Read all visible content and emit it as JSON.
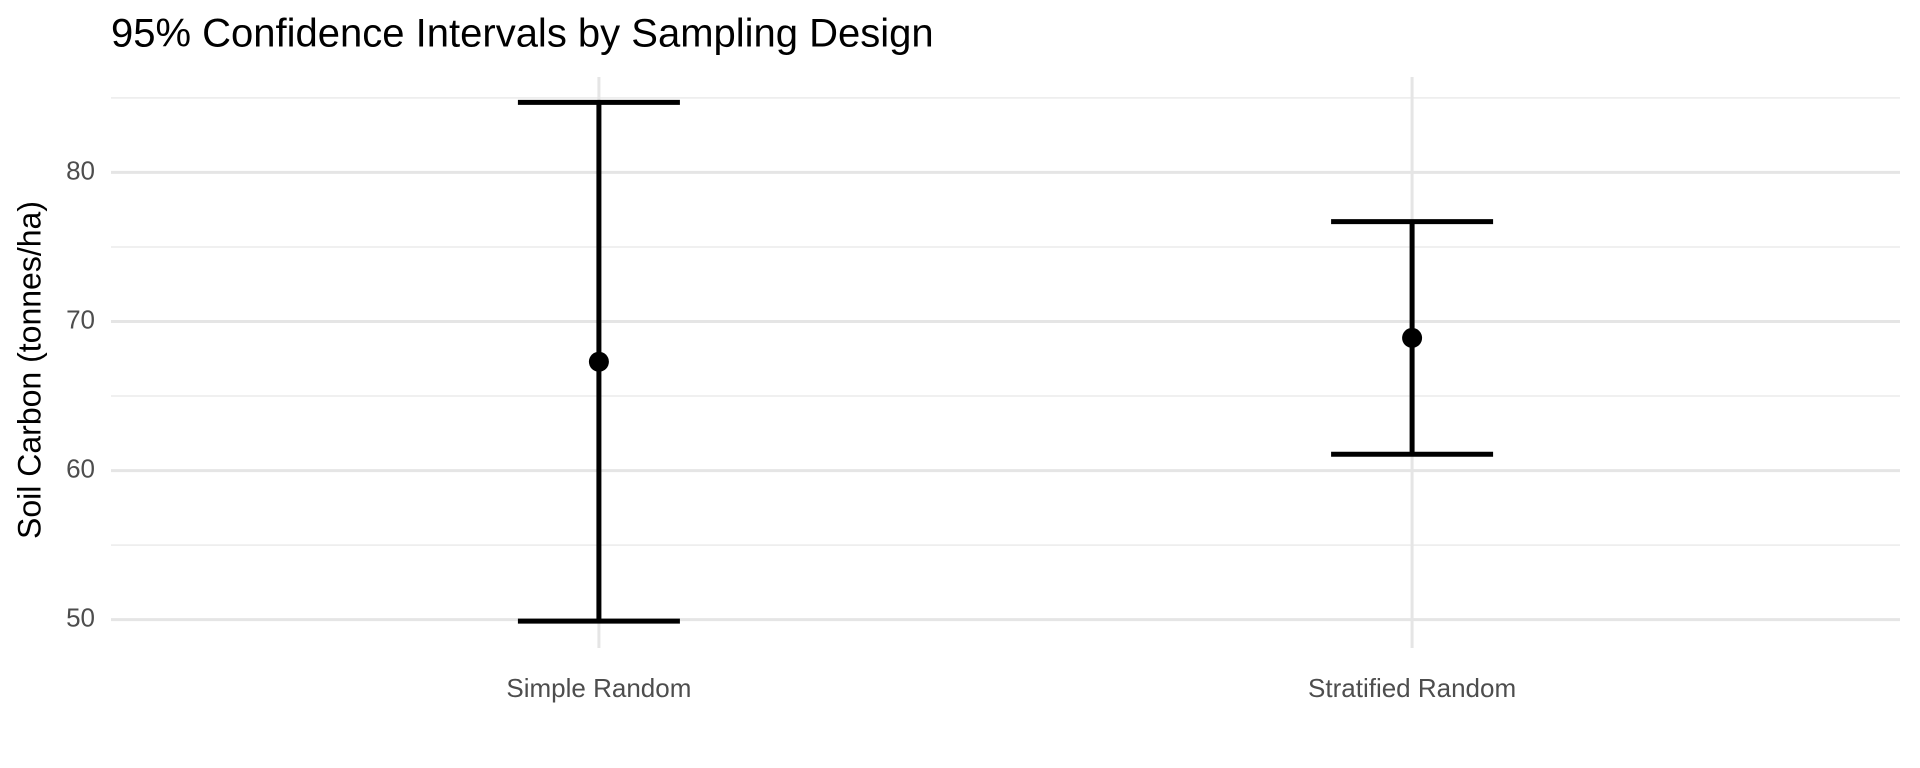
{
  "chart_data": {
    "type": "errorbar",
    "title": "95% Confidence Intervals by Sampling Design",
    "y_label": "Soil Carbon (tonnes/ha)",
    "categories": [
      "Simple Random",
      "Stratified Random"
    ],
    "values": [
      67.3,
      68.9
    ],
    "lower": [
      49.9,
      61.1
    ],
    "upper": [
      84.7,
      76.7
    ],
    "color": "#000000",
    "ylim": [
      48.1,
      86.4
    ],
    "yticks": [
      50,
      60,
      70,
      80
    ],
    "minor_grid": [
      55,
      65,
      75,
      85
    ],
    "grid": true
  }
}
